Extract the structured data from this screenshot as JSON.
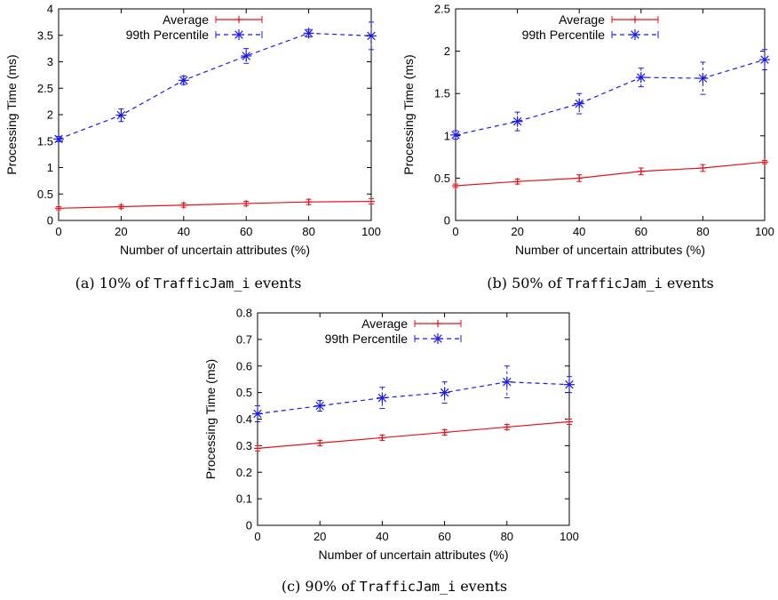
{
  "colors": {
    "average": "#e8121a",
    "p99": "#1a1aee",
    "axis": "#000000"
  },
  "chart_data": [
    {
      "type": "line",
      "caption": {
        "prefix": "(a)",
        "percent": "10%",
        "of": "of",
        "event": "TrafficJam_i",
        "suffix": "events"
      },
      "xlabel": "Number of uncertain attributes (%)",
      "ylabel": "Processing Time (ms)",
      "x": [
        0,
        20,
        40,
        60,
        80,
        100
      ],
      "xlim": [
        0,
        100
      ],
      "xticks": [
        "0",
        "20",
        "40",
        "60",
        "80",
        "100"
      ],
      "ylim": [
        0,
        4
      ],
      "yticks": [
        "0",
        "0.5",
        "1",
        "1.5",
        "2",
        "2.5",
        "3",
        "3.5",
        "4"
      ],
      "legend_position": "top-right",
      "grid": false,
      "series": [
        {
          "name": "Average",
          "values": [
            0.23,
            0.26,
            0.29,
            0.32,
            0.35,
            0.36
          ],
          "err": [
            0.03,
            0.03,
            0.04,
            0.04,
            0.05,
            0.05
          ],
          "marker": "plus",
          "dash": "solid"
        },
        {
          "name": "99th Percentile",
          "values": [
            1.54,
            1.99,
            2.65,
            3.11,
            3.54,
            3.49
          ],
          "err": [
            0.05,
            0.12,
            0.08,
            0.14,
            0.07,
            0.26
          ],
          "marker": "star",
          "dash": "dashed"
        }
      ]
    },
    {
      "type": "line",
      "caption": {
        "prefix": "(b)",
        "percent": "50%",
        "of": "of",
        "event": "TrafficJam_i",
        "suffix": "events"
      },
      "xlabel": "Number of uncertain attributes (%)",
      "ylabel": "Processing Time (ms)",
      "x": [
        0,
        20,
        40,
        60,
        80,
        100
      ],
      "xlim": [
        0,
        100
      ],
      "xticks": [
        "0",
        "20",
        "40",
        "60",
        "80",
        "100"
      ],
      "ylim": [
        0,
        2.5
      ],
      "yticks": [
        "0",
        "0.5",
        "1",
        "1.5",
        "2",
        "2.5"
      ],
      "legend_position": "top-right",
      "grid": false,
      "series": [
        {
          "name": "Average",
          "values": [
            0.41,
            0.46,
            0.5,
            0.58,
            0.62,
            0.69
          ],
          "err": [
            0.02,
            0.03,
            0.04,
            0.04,
            0.04,
            0.02
          ],
          "marker": "plus",
          "dash": "solid"
        },
        {
          "name": "99th Percentile",
          "values": [
            1.01,
            1.17,
            1.38,
            1.69,
            1.68,
            1.9
          ],
          "err": [
            0.05,
            0.11,
            0.12,
            0.11,
            0.19,
            0.12
          ],
          "marker": "star",
          "dash": "dashed"
        }
      ]
    },
    {
      "type": "line",
      "caption": {
        "prefix": "(c)",
        "percent": "90%",
        "of": "of",
        "event": "TrafficJam_i",
        "suffix": "events"
      },
      "xlabel": "Number of uncertain attributes (%)",
      "ylabel": "Processing Time (ms)",
      "x": [
        0,
        20,
        40,
        60,
        80,
        100
      ],
      "xlim": [
        0,
        100
      ],
      "xticks": [
        "0",
        "20",
        "40",
        "60",
        "80",
        "100"
      ],
      "ylim": [
        0,
        0.8
      ],
      "yticks": [
        "0",
        "0.1",
        "0.2",
        "0.3",
        "0.4",
        "0.5",
        "0.6",
        "0.7",
        "0.8"
      ],
      "legend_position": "top-right",
      "grid": false,
      "series": [
        {
          "name": "Average",
          "values": [
            0.29,
            0.31,
            0.33,
            0.35,
            0.37,
            0.39
          ],
          "err": [
            0.01,
            0.01,
            0.01,
            0.01,
            0.01,
            0.01
          ],
          "marker": "plus",
          "dash": "solid"
        },
        {
          "name": "99th Percentile",
          "values": [
            0.42,
            0.45,
            0.48,
            0.5,
            0.54,
            0.53
          ],
          "err": [
            0.03,
            0.02,
            0.04,
            0.04,
            0.06,
            0.03
          ],
          "marker": "star",
          "dash": "dashed"
        }
      ]
    }
  ]
}
